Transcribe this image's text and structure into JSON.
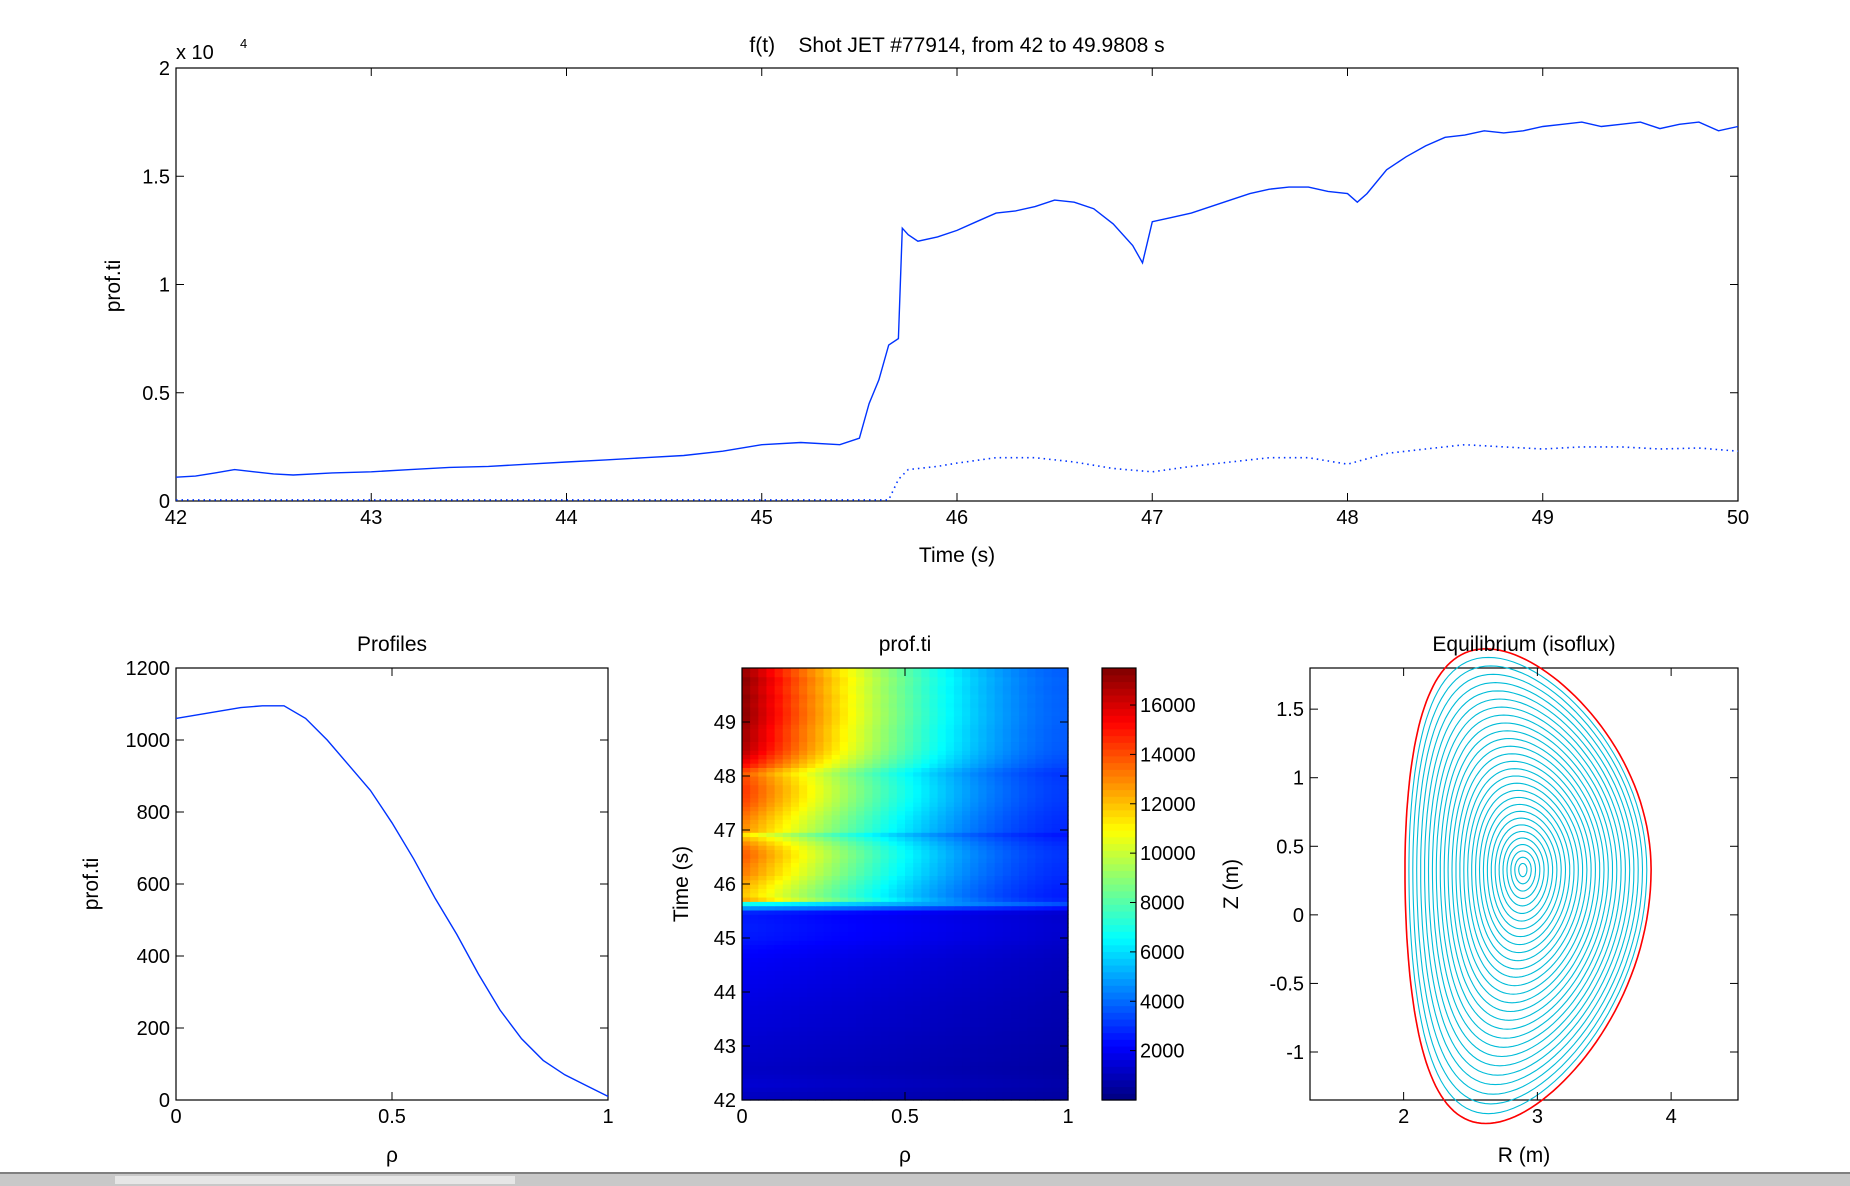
{
  "chart_data": [
    {
      "type": "line",
      "title": "f(t)    Shot JET #77914, from 42 to 49.9808 s",
      "xlabel": "Time (s)",
      "ylabel": "prof.ti",
      "xlim": [
        42,
        50
      ],
      "ylim": [
        0,
        20000
      ],
      "exponent_label": "x 10",
      "exponent_power": "4",
      "xticks": [
        "42",
        "43",
        "44",
        "45",
        "46",
        "47",
        "48",
        "49",
        "50"
      ],
      "yticks": [
        "0",
        "0.5",
        "1",
        "1.5",
        "2"
      ],
      "series": [
        {
          "style": "solid",
          "x": [
            42.0,
            42.1,
            42.2,
            42.3,
            42.4,
            42.5,
            42.6,
            42.8,
            43.0,
            43.2,
            43.4,
            43.6,
            43.8,
            44.0,
            44.2,
            44.4,
            44.6,
            44.8,
            45.0,
            45.2,
            45.4,
            45.5,
            45.55,
            45.6,
            45.65,
            45.7,
            45.72,
            45.75,
            45.8,
            45.9,
            46.0,
            46.1,
            46.2,
            46.3,
            46.4,
            46.5,
            46.6,
            46.7,
            46.8,
            46.9,
            46.95,
            47.0,
            47.1,
            47.2,
            47.3,
            47.4,
            47.5,
            47.6,
            47.7,
            47.8,
            47.9,
            48.0,
            48.05,
            48.1,
            48.2,
            48.3,
            48.4,
            48.5,
            48.6,
            48.7,
            48.8,
            48.9,
            49.0,
            49.1,
            49.2,
            49.3,
            49.4,
            49.5,
            49.6,
            49.7,
            49.8,
            49.9,
            50.0
          ],
          "y": [
            1100,
            1150,
            1300,
            1450,
            1350,
            1250,
            1200,
            1300,
            1350,
            1450,
            1550,
            1600,
            1700,
            1800,
            1900,
            2000,
            2100,
            2300,
            2600,
            2700,
            2600,
            2900,
            4500,
            5600,
            7200,
            7500,
            12600,
            12300,
            12000,
            12200,
            12500,
            12900,
            13300,
            13400,
            13600,
            13900,
            13800,
            13500,
            12800,
            11800,
            11000,
            12900,
            13100,
            13300,
            13600,
            13900,
            14200,
            14400,
            14500,
            14500,
            14300,
            14200,
            13800,
            14200,
            15300,
            15900,
            16400,
            16800,
            16900,
            17100,
            17000,
            17100,
            17300,
            17400,
            17500,
            17300,
            17400,
            17500,
            17200,
            17400,
            17500,
            17100,
            17300
          ]
        },
        {
          "style": "dotted",
          "x": [
            42.0,
            42.5,
            43.0,
            43.5,
            44.0,
            44.5,
            45.0,
            45.5,
            45.65,
            45.7,
            45.75,
            45.9,
            46.0,
            46.2,
            46.4,
            46.6,
            46.8,
            47.0,
            47.2,
            47.4,
            47.6,
            47.8,
            48.0,
            48.2,
            48.4,
            48.6,
            48.8,
            49.0,
            49.2,
            49.4,
            49.6,
            49.8,
            50.0
          ],
          "y": [
            50,
            50,
            50,
            50,
            50,
            50,
            50,
            50,
            50,
            1000,
            1450,
            1600,
            1750,
            2000,
            2000,
            1800,
            1500,
            1350,
            1600,
            1800,
            2000,
            2000,
            1700,
            2200,
            2400,
            2600,
            2500,
            2400,
            2500,
            2500,
            2400,
            2450,
            2300
          ]
        }
      ]
    },
    {
      "type": "line",
      "title": "Profiles",
      "xlabel": "ρ",
      "ylabel": "prof.ti",
      "xlim": [
        0,
        1
      ],
      "ylim": [
        0,
        1200
      ],
      "xticks": [
        "0",
        "0.5",
        "1"
      ],
      "yticks": [
        "0",
        "200",
        "400",
        "600",
        "800",
        "1000",
        "1200"
      ],
      "series": [
        {
          "x": [
            0,
            0.05,
            0.1,
            0.15,
            0.2,
            0.25,
            0.3,
            0.35,
            0.4,
            0.45,
            0.5,
            0.55,
            0.6,
            0.65,
            0.7,
            0.75,
            0.8,
            0.85,
            0.9,
            0.95,
            1.0
          ],
          "y": [
            1060,
            1070,
            1080,
            1090,
            1095,
            1095,
            1060,
            1000,
            930,
            860,
            770,
            670,
            560,
            460,
            350,
            250,
            170,
            110,
            70,
            40,
            10
          ]
        }
      ]
    },
    {
      "type": "heatmap",
      "title": "prof.ti",
      "xlabel": "ρ",
      "ylabel": "Time (s)",
      "xlim": [
        0,
        1
      ],
      "ylim": [
        42,
        50
      ],
      "xticks": [
        "0",
        "0.5",
        "1"
      ],
      "yticks": [
        "42",
        "43",
        "44",
        "45",
        "46",
        "47",
        "48",
        "49"
      ],
      "colorbar_ticks": [
        "2000",
        "4000",
        "6000",
        "8000",
        "10000",
        "12000",
        "14000",
        "16000"
      ],
      "clim": [
        0,
        17500
      ],
      "colormap": "jet"
    },
    {
      "type": "contour",
      "title": "Equilibrium (isoflux)",
      "xlabel": "R (m)",
      "ylabel": "Z (m)",
      "xlim": [
        1.3,
        4.5
      ],
      "ylim": [
        -1.35,
        1.8
      ],
      "xticks": [
        "2",
        "3",
        "4"
      ],
      "yticks": [
        "-1",
        "-0.5",
        "0",
        "0.5",
        "1",
        "1.5"
      ],
      "boundary_color": "#ff0000",
      "contour_color": "#00bcd8"
    }
  ],
  "colors": {
    "line": "#0033ff"
  }
}
